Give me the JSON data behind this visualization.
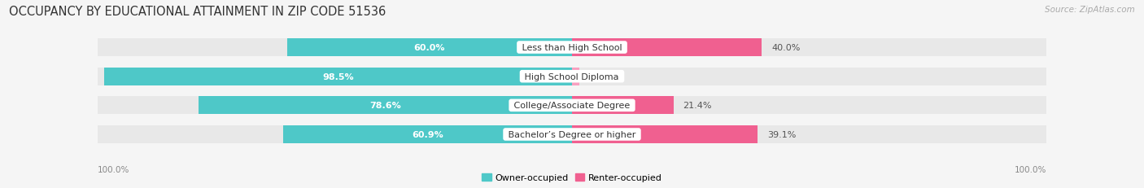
{
  "title": "OCCUPANCY BY EDUCATIONAL ATTAINMENT IN ZIP CODE 51536",
  "source": "Source: ZipAtlas.com",
  "categories": [
    "Less than High School",
    "High School Diploma",
    "College/Associate Degree",
    "Bachelor’s Degree or higher"
  ],
  "owner_pct": [
    60.0,
    98.5,
    78.6,
    60.9
  ],
  "renter_pct": [
    40.0,
    1.5,
    21.4,
    39.1
  ],
  "owner_color": "#4ec8c8",
  "renter_color": "#f06090",
  "renter_color_light": "#f8a0c0",
  "background_color": "#f5f5f5",
  "bar_bg_color": "#e8e8e8",
  "title_fontsize": 10.5,
  "source_fontsize": 7.5,
  "label_fontsize": 8,
  "value_fontsize": 8,
  "axis_label_fontsize": 7.5,
  "legend_fontsize": 8,
  "bar_height": 0.62,
  "left_axis_label": "100.0%",
  "right_axis_label": "100.0%",
  "owner_label": "Owner-occupied",
  "renter_label": "Renter-occupied"
}
